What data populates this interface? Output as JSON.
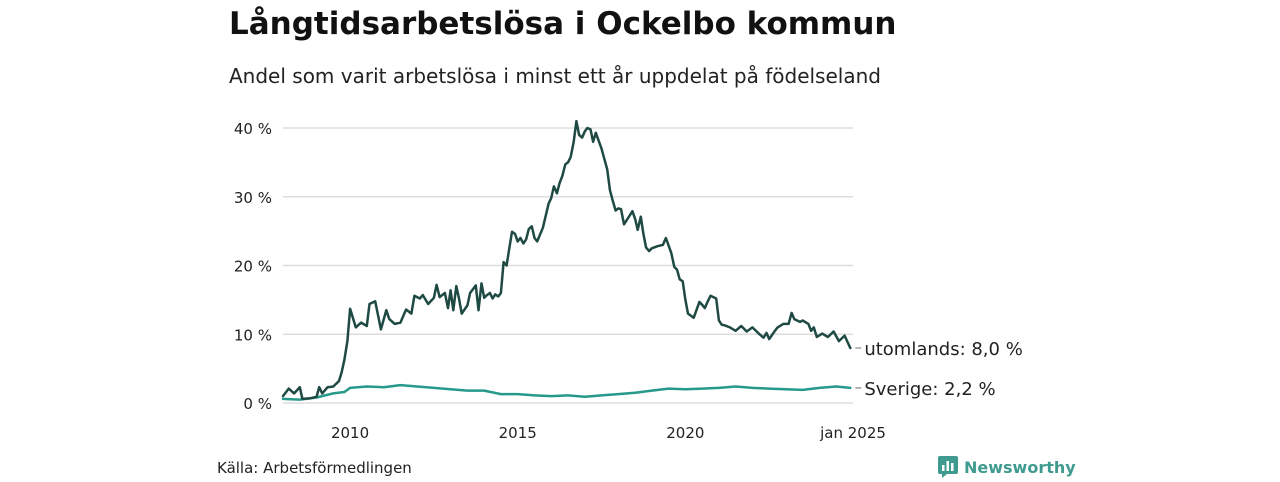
{
  "title": "Långtidsarbetslösa i Ockelbo kommun",
  "subtitle": "Andel som varit arbetslösa i minst ett år uppdelat på födelseland",
  "source": "Källa: Arbetsförmedlingen",
  "brand": "Newsworthy",
  "colors": {
    "utrikes": "#1f4a44",
    "sverige": "#26998a",
    "grid": "#dddddd",
    "brand": "#3f9b8f"
  },
  "chart_data": {
    "type": "line",
    "x_axis": {
      "min": 2008.0,
      "max": 2025.0,
      "ticks": [
        {
          "value": 2010,
          "label": "2010"
        },
        {
          "value": 2015,
          "label": "2015"
        },
        {
          "value": 2020,
          "label": "2020"
        },
        {
          "value": 2025,
          "label": "jan 2025"
        }
      ]
    },
    "y_axis": {
      "min": 0,
      "max": 40,
      "ticks": [
        {
          "value": 0,
          "label": "0 %"
        },
        {
          "value": 10,
          "label": "10 %"
        },
        {
          "value": 20,
          "label": "20 %"
        },
        {
          "value": 30,
          "label": "30 %"
        },
        {
          "value": 40,
          "label": "40 %"
        }
      ]
    },
    "grid": true,
    "series": [
      {
        "name": "utomlands",
        "end_label": "utomlands: 8,0 %",
        "color": "#1f4a44",
        "points": [
          [
            2008.0,
            1.0
          ],
          [
            2008.17,
            2.1
          ],
          [
            2008.33,
            1.4
          ],
          [
            2008.5,
            2.3
          ],
          [
            2008.58,
            0.6
          ],
          [
            2008.83,
            0.7
          ],
          [
            2009.0,
            0.9
          ],
          [
            2009.08,
            2.3
          ],
          [
            2009.17,
            1.4
          ],
          [
            2009.33,
            2.3
          ],
          [
            2009.5,
            2.4
          ],
          [
            2009.67,
            3.2
          ],
          [
            2009.75,
            4.5
          ],
          [
            2009.83,
            6.3
          ],
          [
            2009.92,
            9.0
          ],
          [
            2010.0,
            13.7
          ],
          [
            2010.17,
            11.0
          ],
          [
            2010.33,
            11.7
          ],
          [
            2010.5,
            11.2
          ],
          [
            2010.58,
            14.4
          ],
          [
            2010.75,
            14.8
          ],
          [
            2010.92,
            10.7
          ],
          [
            2011.08,
            13.5
          ],
          [
            2011.17,
            12.2
          ],
          [
            2011.33,
            11.5
          ],
          [
            2011.5,
            11.7
          ],
          [
            2011.67,
            13.6
          ],
          [
            2011.83,
            13.0
          ],
          [
            2011.92,
            15.6
          ],
          [
            2012.08,
            15.2
          ],
          [
            2012.17,
            15.7
          ],
          [
            2012.33,
            14.4
          ],
          [
            2012.5,
            15.3
          ],
          [
            2012.58,
            17.2
          ],
          [
            2012.67,
            15.4
          ],
          [
            2012.83,
            16.0
          ],
          [
            2012.92,
            13.8
          ],
          [
            2013.0,
            16.4
          ],
          [
            2013.08,
            13.5
          ],
          [
            2013.17,
            17.0
          ],
          [
            2013.25,
            15.2
          ],
          [
            2013.33,
            13.0
          ],
          [
            2013.5,
            14.2
          ],
          [
            2013.58,
            16.0
          ],
          [
            2013.75,
            17.1
          ],
          [
            2013.83,
            13.5
          ],
          [
            2013.92,
            17.4
          ],
          [
            2014.0,
            15.3
          ],
          [
            2014.08,
            15.7
          ],
          [
            2014.17,
            16.0
          ],
          [
            2014.25,
            15.2
          ],
          [
            2014.33,
            15.8
          ],
          [
            2014.42,
            15.5
          ],
          [
            2014.5,
            16.0
          ],
          [
            2014.58,
            20.5
          ],
          [
            2014.67,
            20.0
          ],
          [
            2014.75,
            22.5
          ],
          [
            2014.83,
            24.9
          ],
          [
            2014.92,
            24.6
          ],
          [
            2015.0,
            23.5
          ],
          [
            2015.08,
            24.0
          ],
          [
            2015.17,
            23.2
          ],
          [
            2015.25,
            23.8
          ],
          [
            2015.33,
            25.3
          ],
          [
            2015.42,
            25.7
          ],
          [
            2015.5,
            24.0
          ],
          [
            2015.58,
            23.5
          ],
          [
            2015.75,
            25.5
          ],
          [
            2015.92,
            29.0
          ],
          [
            2016.0,
            29.8
          ],
          [
            2016.08,
            31.5
          ],
          [
            2016.17,
            30.5
          ],
          [
            2016.25,
            32.0
          ],
          [
            2016.33,
            33.0
          ],
          [
            2016.42,
            34.7
          ],
          [
            2016.5,
            35.0
          ],
          [
            2016.58,
            35.8
          ],
          [
            2016.67,
            38.0
          ],
          [
            2016.75,
            41.0
          ],
          [
            2016.83,
            39.0
          ],
          [
            2016.92,
            38.6
          ],
          [
            2017.0,
            39.5
          ],
          [
            2017.08,
            40.0
          ],
          [
            2017.17,
            39.8
          ],
          [
            2017.25,
            38.0
          ],
          [
            2017.33,
            39.3
          ],
          [
            2017.5,
            37.0
          ],
          [
            2017.67,
            34.0
          ],
          [
            2017.75,
            31.0
          ],
          [
            2017.83,
            29.5
          ],
          [
            2017.92,
            28.0
          ],
          [
            2018.0,
            28.3
          ],
          [
            2018.08,
            28.2
          ],
          [
            2018.17,
            26.0
          ],
          [
            2018.33,
            27.2
          ],
          [
            2018.42,
            27.9
          ],
          [
            2018.5,
            26.8
          ],
          [
            2018.58,
            25.2
          ],
          [
            2018.67,
            27.1
          ],
          [
            2018.75,
            24.6
          ],
          [
            2018.83,
            22.6
          ],
          [
            2018.92,
            22.1
          ],
          [
            2019.0,
            22.5
          ],
          [
            2019.17,
            22.8
          ],
          [
            2019.33,
            23.0
          ],
          [
            2019.42,
            24.0
          ],
          [
            2019.58,
            21.8
          ],
          [
            2019.67,
            19.8
          ],
          [
            2019.75,
            19.4
          ],
          [
            2019.83,
            18.0
          ],
          [
            2019.92,
            17.7
          ],
          [
            2020.0,
            15.0
          ],
          [
            2020.08,
            13.0
          ],
          [
            2020.25,
            12.4
          ],
          [
            2020.42,
            14.7
          ],
          [
            2020.5,
            14.3
          ],
          [
            2020.58,
            13.8
          ],
          [
            2020.67,
            14.8
          ],
          [
            2020.75,
            15.6
          ],
          [
            2020.92,
            15.2
          ],
          [
            2021.0,
            12.0
          ],
          [
            2021.08,
            11.4
          ],
          [
            2021.17,
            11.3
          ],
          [
            2021.33,
            11.0
          ],
          [
            2021.5,
            10.5
          ],
          [
            2021.67,
            11.2
          ],
          [
            2021.83,
            10.4
          ],
          [
            2022.0,
            11.0
          ],
          [
            2022.17,
            10.2
          ],
          [
            2022.33,
            9.5
          ],
          [
            2022.42,
            10.2
          ],
          [
            2022.5,
            9.3
          ],
          [
            2022.67,
            10.5
          ],
          [
            2022.75,
            11.0
          ],
          [
            2022.92,
            11.5
          ],
          [
            2023.08,
            11.5
          ],
          [
            2023.17,
            13.1
          ],
          [
            2023.25,
            12.2
          ],
          [
            2023.42,
            11.8
          ],
          [
            2023.5,
            12.0
          ],
          [
            2023.67,
            11.5
          ],
          [
            2023.75,
            10.5
          ],
          [
            2023.83,
            11.0
          ],
          [
            2023.92,
            9.6
          ],
          [
            2024.08,
            10.1
          ],
          [
            2024.25,
            9.6
          ],
          [
            2024.42,
            10.4
          ],
          [
            2024.58,
            9.0
          ],
          [
            2024.75,
            9.8
          ],
          [
            2024.92,
            8.0
          ]
        ]
      },
      {
        "name": "Sverige",
        "end_label": "Sverige: 2,2 %",
        "color": "#26998a",
        "points": [
          [
            2008.0,
            0.6
          ],
          [
            2008.5,
            0.5
          ],
          [
            2009.0,
            0.8
          ],
          [
            2009.5,
            1.4
          ],
          [
            2009.83,
            1.6
          ],
          [
            2010.0,
            2.2
          ],
          [
            2010.5,
            2.4
          ],
          [
            2011.0,
            2.3
          ],
          [
            2011.5,
            2.6
          ],
          [
            2012.0,
            2.4
          ],
          [
            2012.5,
            2.2
          ],
          [
            2013.0,
            2.0
          ],
          [
            2013.5,
            1.8
          ],
          [
            2014.0,
            1.8
          ],
          [
            2014.5,
            1.3
          ],
          [
            2015.0,
            1.3
          ],
          [
            2015.5,
            1.1
          ],
          [
            2016.0,
            1.0
          ],
          [
            2016.5,
            1.1
          ],
          [
            2017.0,
            0.9
          ],
          [
            2017.5,
            1.1
          ],
          [
            2018.0,
            1.3
          ],
          [
            2018.5,
            1.5
          ],
          [
            2019.0,
            1.8
          ],
          [
            2019.5,
            2.1
          ],
          [
            2020.0,
            2.0
          ],
          [
            2020.5,
            2.1
          ],
          [
            2021.0,
            2.2
          ],
          [
            2021.5,
            2.4
          ],
          [
            2022.0,
            2.2
          ],
          [
            2022.5,
            2.1
          ],
          [
            2023.0,
            2.0
          ],
          [
            2023.5,
            1.9
          ],
          [
            2024.0,
            2.2
          ],
          [
            2024.5,
            2.4
          ],
          [
            2024.92,
            2.2
          ]
        ]
      }
    ]
  }
}
